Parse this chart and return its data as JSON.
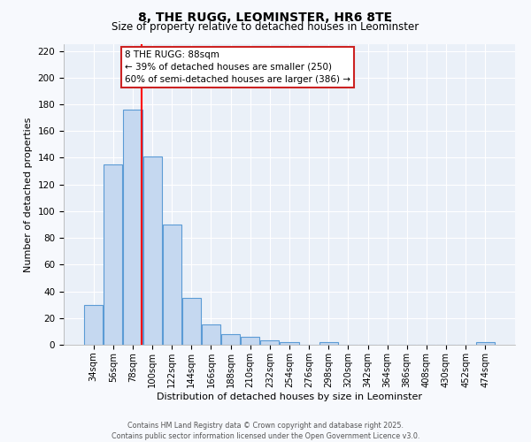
{
  "title": "8, THE RUGG, LEOMINSTER, HR6 8TE",
  "subtitle": "Size of property relative to detached houses in Leominster",
  "xlabel": "Distribution of detached houses by size in Leominster",
  "ylabel": "Number of detached properties",
  "bar_values": [
    30,
    135,
    176,
    141,
    90,
    35,
    15,
    8,
    6,
    3,
    2,
    0,
    2,
    0,
    0,
    0,
    0,
    0,
    0,
    0,
    2
  ],
  "bar_labels": [
    "34sqm",
    "56sqm",
    "78sqm",
    "100sqm",
    "122sqm",
    "144sqm",
    "166sqm",
    "188sqm",
    "210sqm",
    "232sqm",
    "254sqm",
    "276sqm",
    "298sqm",
    "320sqm",
    "342sqm",
    "364sqm",
    "386sqm",
    "408sqm",
    "430sqm",
    "452sqm",
    "474sqm"
  ],
  "bar_color": "#c5d8f0",
  "bar_edge_color": "#5b9bd5",
  "red_line_x": 88,
  "ylim": [
    0,
    225
  ],
  "yticks": [
    0,
    20,
    40,
    60,
    80,
    100,
    120,
    140,
    160,
    180,
    200,
    220
  ],
  "annotation_title": "8 THE RUGG: 88sqm",
  "annotation_line1": "← 39% of detached houses are smaller (250)",
  "annotation_line2": "60% of semi-detached houses are larger (386) →",
  "footer1": "Contains HM Land Registry data © Crown copyright and database right 2025.",
  "footer2": "Contains public sector information licensed under the Open Government Licence v3.0.",
  "background_color": "#f7f9fd",
  "plot_bg_color": "#eaf0f8",
  "grid_color": "#ffffff"
}
